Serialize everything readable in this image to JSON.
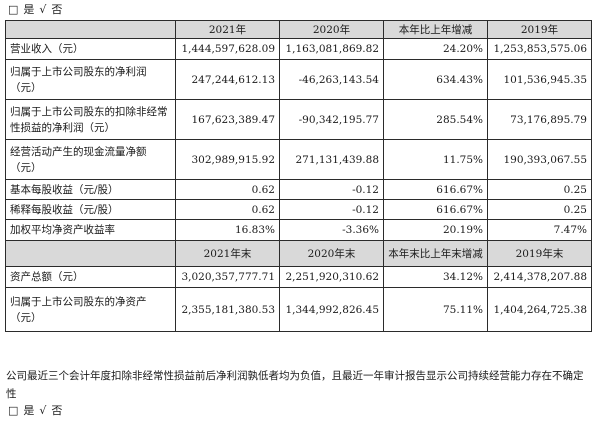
{
  "top_options": {
    "box": "□",
    "yes": "是",
    "check": "√",
    "no": "否"
  },
  "header1": {
    "col0": "",
    "col1": "2021年",
    "col2": "2020年",
    "col3": "本年比上年增减",
    "col4": "2019年"
  },
  "rows1": [
    {
      "label": "营业收入（元）",
      "v2021": "1,444,597,628.09",
      "v2020": "1,163,081,869.82",
      "change": "24.20%",
      "v2019": "1,253,853,575.06"
    },
    {
      "label": "归属于上市公司股东的净利润（元）",
      "v2021": "247,244,612.13",
      "v2020": "-46,263,143.54",
      "change": "634.43%",
      "v2019": "101,536,945.35"
    },
    {
      "label": "归属于上市公司股东的扣除非经常性损益的净利润（元）",
      "v2021": "167,623,389.47",
      "v2020": "-90,342,195.77",
      "change": "285.54%",
      "v2019": "73,176,895.79"
    },
    {
      "label": "经营活动产生的现金流量净额（元）",
      "v2021": "302,989,915.92",
      "v2020": "271,131,439.88",
      "change": "11.75%",
      "v2019": "190,393,067.55"
    },
    {
      "label": "基本每股收益（元/股）",
      "v2021": "0.62",
      "v2020": "-0.12",
      "change": "616.67%",
      "v2019": "0.25"
    },
    {
      "label": "稀释每股收益（元/股）",
      "v2021": "0.62",
      "v2020": "-0.12",
      "change": "616.67%",
      "v2019": "0.25"
    },
    {
      "label": "加权平均净资产收益率",
      "v2021": "16.83%",
      "v2020": "-3.36%",
      "change": "20.19%",
      "v2019": "7.47%"
    }
  ],
  "header2": {
    "col0": "",
    "col1": "2021年末",
    "col2": "2020年末",
    "col3": "本年末比上年末增减",
    "col4": "2019年末"
  },
  "rows2": [
    {
      "label": "资产总额（元）",
      "v2021": "3,020,357,777.71",
      "v2020": "2,251,920,310.62",
      "change": "34.12%",
      "v2019": "2,414,378,207.88"
    },
    {
      "label": "归属于上市公司股东的净资产（元）",
      "v2021": "2,355,181,380.53",
      "v2020": "1,344,992,826.45",
      "change": "75.11%",
      "v2019": "1,404,264,725.38"
    }
  ],
  "note": "公司最近三个会计年度扣除非经常性损益前后净利润孰低者均为负值，且最近一年审计报告显示公司持续经营能力存在不确定性",
  "bottom_options": {
    "box": "□",
    "yes": "是",
    "check": "√",
    "no": "否"
  }
}
